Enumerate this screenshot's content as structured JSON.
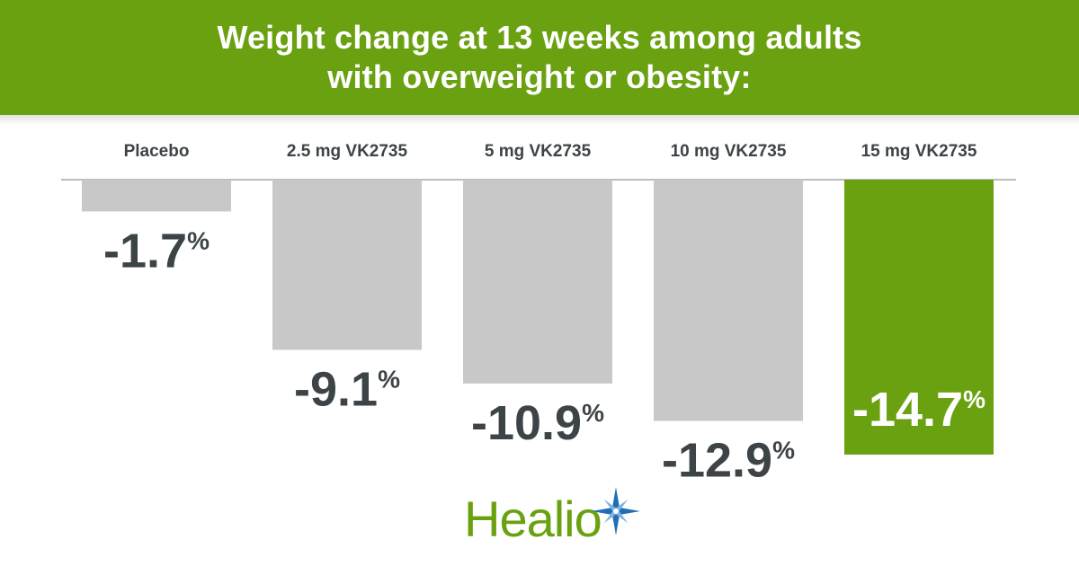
{
  "title_lines": [
    "Weight change at 13 weeks among adults",
    "with overweight or obesity:"
  ],
  "colors": {
    "accent": "#6aa110",
    "bar_gray": "#c8c8c8",
    "value_text": "#3d4447",
    "highlight_value_text": "#ffffff"
  },
  "chart_data": {
    "type": "bar",
    "title": "Weight change at 13 weeks among adults with overweight or obesity:",
    "categories": [
      "Placebo",
      "2.5 mg VK2735",
      "5 mg VK2735",
      "10 mg VK2735",
      "15 mg VK2735"
    ],
    "values": [
      -1.7,
      -9.1,
      -10.9,
      -12.9,
      -14.7
    ],
    "value_labels": [
      "-1.7",
      "-9.1",
      "-10.9",
      "-12.9",
      "-14.7"
    ],
    "unit": "%",
    "highlight_index": 4,
    "xlabel": "",
    "ylabel": "",
    "ylim": [
      -14.7,
      0
    ],
    "grid": false,
    "legend": "none"
  },
  "logo": {
    "text": "Healio",
    "icon": "star-icon"
  }
}
